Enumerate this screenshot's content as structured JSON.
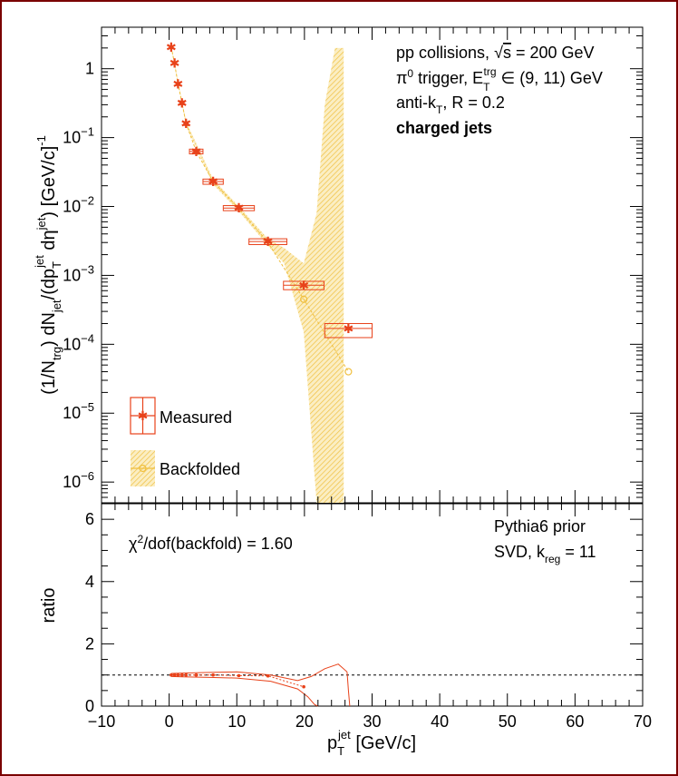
{
  "colors": {
    "measured": "#e8421a",
    "backfolded": "#f0c040",
    "band": "#f3d27a",
    "ratio_ref": "#000000"
  },
  "annotations": {
    "line1": "pp collisions, √s = 200 GeV",
    "line2": "π⁰ trigger, E_T^trg ∈ (9, 11) GeV",
    "line3": "anti-k_T, R = 0.2",
    "line4": "charged jets",
    "chi2": "χ²/dof(backfold) = 1.60",
    "prior": "Pythia6 prior",
    "svd": "SVD, k_reg = 11"
  },
  "legend": {
    "measured": "Measured",
    "backfolded": "Backfolded"
  },
  "chart_data": [
    {
      "type": "scatter",
      "panel": "top",
      "ylabel": "(1/N_trg) dN_jet/(dp_T^jet dη^jet) [GeV/c]^-1",
      "xlim": [
        -10,
        70
      ],
      "ylim": [
        5e-07,
        4
      ],
      "yscale": "log",
      "yticks": [
        "10^-6",
        "10^-5",
        "10^-4",
        "10^-3",
        "10^-2",
        "10^-1",
        "1"
      ],
      "series": [
        {
          "name": "Measured",
          "x": [
            0.3,
            0.8,
            1.3,
            1.9,
            2.5,
            4.0,
            6.5,
            10.3,
            14.6,
            19.9,
            26.5
          ],
          "y": [
            2.05,
            1.2,
            0.6,
            0.32,
            0.16,
            0.063,
            0.023,
            0.0095,
            0.0031,
            0.00072,
            0.00017
          ],
          "xerr": [
            0.25,
            0.25,
            0.25,
            0.3,
            0.3,
            1.0,
            1.5,
            2.3,
            2.8,
            3.0,
            3.5
          ],
          "ylow": [
            1.95,
            1.15,
            0.57,
            0.3,
            0.15,
            0.058,
            0.021,
            0.0087,
            0.0028,
            0.00062,
            0.000125
          ],
          "yhigh": [
            2.15,
            1.25,
            0.63,
            0.34,
            0.17,
            0.068,
            0.025,
            0.0103,
            0.0034,
            0.00082,
            0.0002
          ]
        },
        {
          "name": "Backfolded",
          "x": [
            0.3,
            0.8,
            1.3,
            1.9,
            2.5,
            4.0,
            6.5,
            10.3,
            14.6,
            19.9,
            26.5
          ],
          "y": [
            2.05,
            1.2,
            0.6,
            0.32,
            0.16,
            0.063,
            0.023,
            0.0093,
            0.003,
            0.00045,
            4e-05
          ],
          "band_x": [
            0.3,
            2.5,
            6.5,
            10.3,
            14.6,
            17.0,
            19.9,
            21.8,
            23.0,
            24.5,
            25.8
          ],
          "band_low": [
            1.95,
            0.15,
            0.021,
            0.0085,
            0.0027,
            0.0015,
            0.00015,
            5e-07,
            5e-07,
            5e-07,
            5e-07
          ],
          "band_high": [
            2.15,
            0.17,
            0.025,
            0.01,
            0.0034,
            0.0025,
            0.0015,
            0.008,
            0.3,
            2.0,
            2.0
          ]
        }
      ]
    },
    {
      "type": "line",
      "panel": "bottom",
      "xlabel": "p_T^jet [GeV/c]",
      "ylabel": "ratio",
      "xlim": [
        -10,
        70
      ],
      "ylim": [
        0,
        6.5
      ],
      "xticks": [
        -10,
        0,
        10,
        20,
        30,
        40,
        50,
        60,
        70
      ],
      "yticks": [
        0,
        2,
        4,
        6
      ],
      "reference": 1.0,
      "points": {
        "x": [
          0.3,
          0.8,
          1.3,
          1.9,
          2.5,
          4.0,
          6.5,
          10.3,
          14.6,
          19.9
        ],
        "y": [
          1.0,
          1.0,
          1.0,
          1.0,
          1.0,
          1.0,
          1.0,
          0.98,
          0.97,
          0.62
        ]
      },
      "band_upper": {
        "x": [
          0.3,
          2.0,
          6.0,
          10.0,
          15.0,
          19.0,
          21.0,
          23.0,
          25.0,
          26.3
        ],
        "y": [
          1.05,
          1.06,
          1.08,
          1.1,
          1.0,
          0.82,
          0.95,
          1.2,
          1.35,
          1.1
        ]
      },
      "band_lower": {
        "x": [
          0.3,
          2.0,
          6.0,
          10.0,
          15.0,
          19.0,
          20.5,
          21.5,
          22.0
        ],
        "y": [
          0.95,
          0.94,
          0.92,
          0.9,
          0.8,
          0.55,
          0.3,
          0.05,
          0.0
        ]
      },
      "band_tail": {
        "x": [
          26.3,
          26.5,
          26.7
        ],
        "y": [
          1.1,
          0.5,
          0.0
        ]
      }
    }
  ]
}
